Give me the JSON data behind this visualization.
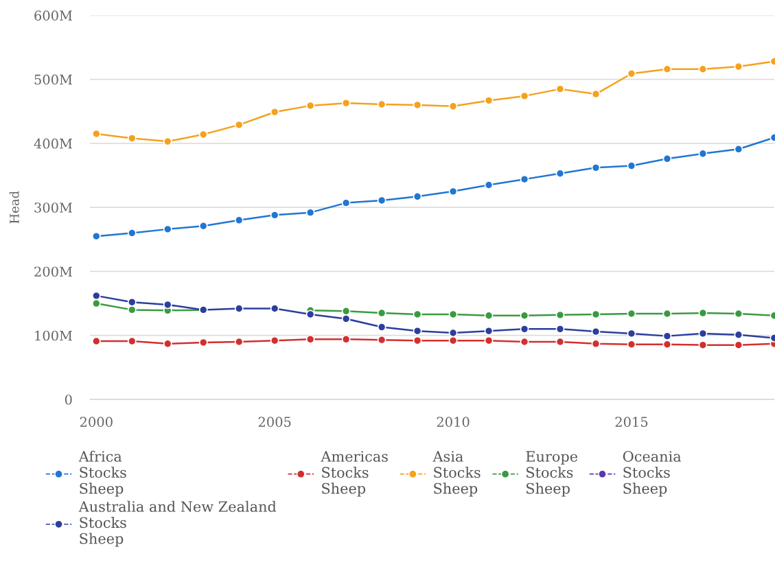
{
  "chart_data": {
    "type": "line",
    "ylabel": "Head",
    "x": [
      2000,
      2001,
      2002,
      2003,
      2004,
      2005,
      2006,
      2007,
      2008,
      2009,
      2010,
      2011,
      2012,
      2013,
      2014,
      2015,
      2016,
      2017,
      2018,
      2019
    ],
    "series": [
      {
        "name": "Africa\nStocks\nSheep",
        "color": "#2176d2",
        "values": [
          255,
          260,
          266,
          271,
          280,
          288,
          292,
          307,
          311,
          317,
          325,
          335,
          344,
          353,
          362,
          365,
          376,
          384,
          391,
          409
        ]
      },
      {
        "name": "Americas\nStocks\nSheep",
        "color": "#d32f2f",
        "values": [
          91,
          91,
          87,
          89,
          90,
          92,
          94,
          94,
          93,
          92,
          92,
          92,
          90,
          90,
          87,
          86,
          86,
          85,
          85,
          87
        ]
      },
      {
        "name": "Asia\nStocks\nSheep",
        "color": "#f5a11c",
        "values": [
          415,
          408,
          403,
          414,
          429,
          449,
          459,
          463,
          461,
          460,
          458,
          467,
          474,
          485,
          477,
          509,
          516,
          516,
          520,
          528
        ]
      },
      {
        "name": "Europe\nStocks\nSheep",
        "color": "#3a9a3f",
        "values": [
          150,
          140,
          139,
          140,
          null,
          null,
          139,
          138,
          135,
          133,
          133,
          131,
          131,
          132,
          133,
          134,
          134,
          135,
          134,
          131
        ]
      },
      {
        "name": "Oceania\nStocks\nSheep",
        "color": "#5e35b1",
        "values": [
          null,
          null,
          null,
          null,
          null,
          null,
          null,
          null,
          null,
          null,
          null,
          null,
          null,
          null,
          null,
          null,
          null,
          null,
          null,
          null
        ]
      },
      {
        "name": "Australia and New Zealand\nStocks\nSheep",
        "color": "#2c3e9e",
        "values": [
          162,
          152,
          148,
          140,
          142,
          142,
          133,
          126,
          113,
          107,
          104,
          107,
          110,
          110,
          106,
          103,
          99,
          103,
          101,
          96
        ]
      }
    ],
    "xlim": [
      1999.82,
      2019
    ],
    "xticks": [
      2000,
      2005,
      2010,
      2015
    ],
    "ylim": [
      0,
      600
    ],
    "yticks": [
      0,
      {
        "value": 100,
        "label": "100M"
      },
      {
        "value": 200,
        "label": "200M"
      },
      {
        "value": 300,
        "label": "300M"
      },
      {
        "value": 400,
        "label": "400M"
      },
      {
        "value": 500,
        "label": "500M"
      },
      {
        "value": 600,
        "label": "600M"
      }
    ],
    "grid": "y",
    "legend": "bottom",
    "marker": "circle",
    "line_style": "solid"
  }
}
